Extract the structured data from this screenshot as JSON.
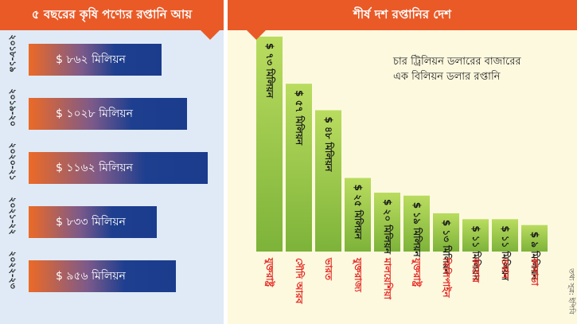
{
  "left_panel": {
    "title": "৫ বছরের কৃষি পণ্যের রপ্তানি আয়",
    "rows": [
      {
        "year": "২০১৮-১৯",
        "label": "$ ৮৬২ মিলিয়ন",
        "value": 862
      },
      {
        "year": "২০১৯-২০",
        "label": "$ ১০২৮ মিলিয়ন",
        "value": 1028
      },
      {
        "year": "২০২০-২১",
        "label": "$ ১১৬২ মিলিয়ন",
        "value": 1162
      },
      {
        "year": "২০২১-২২",
        "label": "$ ৮৩৩ মিলিয়ন",
        "value": 833
      },
      {
        "year": "২০২২-২৩",
        "label": "$ ৯৫৬ মিলিয়ন",
        "value": 956
      }
    ]
  },
  "right_panel": {
    "title": "শীর্ষ দশ রপ্তানির দেশ",
    "note_line1": "চার ট্রিলিয়ন ডলারের বাজারের",
    "note_line2": "এক বিলিয়ন ডলার রপ্তানি",
    "source": "তথ্য সূত্র: ইপিবি"
  },
  "chart_data": [
    {
      "type": "bar",
      "orientation": "horizontal",
      "title": "৫ বছরের কৃষি পণ্যের রপ্তানি আয়",
      "categories": [
        "২০১৮-১৯",
        "২০১৯-২০",
        "২০২০-২১",
        "২০২১-২২",
        "২০২২-২৩"
      ],
      "values": [
        862,
        1028,
        1162,
        833,
        956
      ],
      "data_labels": [
        "$ ৮৬২ মিলিয়ন",
        "$ ১০২৮ মিলিয়ন",
        "$ ১১৬২ মিলিয়ন",
        "$ ৮৩৩ মিলিয়ন",
        "$ ৯৫৬ মিলিয়ন"
      ],
      "colors": [
        "#ec6a26",
        "#1b3b8c"
      ]
    },
    {
      "type": "bar",
      "orientation": "vertical",
      "title": "শীর্ষ দশ রপ্তানির দেশ",
      "categories": [
        "যুক্তরাষ্ট্র",
        "সৌদি আরব",
        "ভারত",
        "যুক্তরাজ্য",
        "মালয়েশিয়া",
        "যুক্তরাষ্ট্র",
        "ফিলিপাইন",
        "কাতার",
        "ওমান",
        "কানাডা"
      ],
      "values": [
        73,
        57,
        48,
        25,
        20,
        19,
        13,
        11,
        11,
        9
      ],
      "data_labels": [
        "$ ৭৩ মিলিয়ন",
        "$ ৫৭ মিলিয়ন",
        "$ ৪৮ মিলিয়ন",
        "$ ২৫ মিলিয়ন",
        "$ ২০ মিলিয়ন",
        "$ ১৯ মিলিয়ন",
        "$ ১৩ মিলিয়ন",
        "$ ১১ মিলিয়ন",
        "$ ১১ মিলিয়ন",
        "$ ৯ মিলিয়ন"
      ],
      "colors": [
        "#a4d04a",
        "#e52620"
      ]
    }
  ]
}
